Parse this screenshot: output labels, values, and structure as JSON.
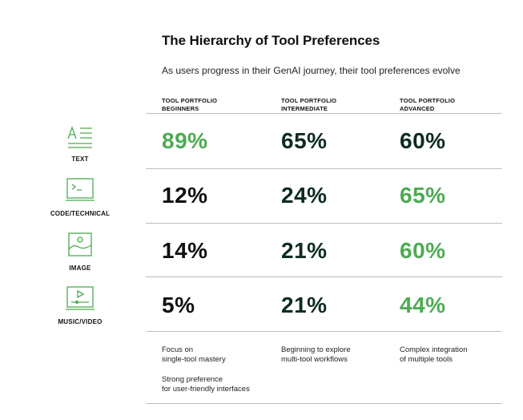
{
  "title": "The Hierarchy of Tool Preferences",
  "subtitle": "As users progress in their GenAI journey, their tool preferences evolve",
  "columns": [
    {
      "line1": "TOOL PORTFOLIO",
      "line2": "BEGINNERS"
    },
    {
      "line1": "TOOL PORTFOLIO",
      "line2": "INTERMEDIATE"
    },
    {
      "line1": "TOOL PORTFOLIO",
      "line2": "ADVANCED"
    }
  ],
  "rows": [
    {
      "label": "TEXT",
      "icon": "text-icon",
      "values": [
        "89%",
        "65%",
        "60%"
      ]
    },
    {
      "label": "CODE/TECHNICAL",
      "icon": "terminal-icon",
      "values": [
        "12%",
        "24%",
        "65%"
      ]
    },
    {
      "label": "IMAGE",
      "icon": "image-icon",
      "values": [
        "14%",
        "21%",
        "60%"
      ]
    },
    {
      "label": "MUSIC/VIDEO",
      "icon": "video-player-icon",
      "values": [
        "5%",
        "21%",
        "44%"
      ]
    }
  ],
  "notes": {
    "beginners": {
      "line1": "Focus on",
      "line2": "single-tool mastery",
      "line3": "Strong preference",
      "line4": "for user-friendly interfaces"
    },
    "intermediate": {
      "line1": "Beginning to explore",
      "line2": "multi-tool workflows"
    },
    "advanced": {
      "line1": "Complex integration",
      "line2": "of multiple tools"
    }
  },
  "colors": {
    "accent_green": "#4cab52",
    "dark_green": "#0d2b23",
    "black": "#111111",
    "rule": "#bdbdbd"
  }
}
